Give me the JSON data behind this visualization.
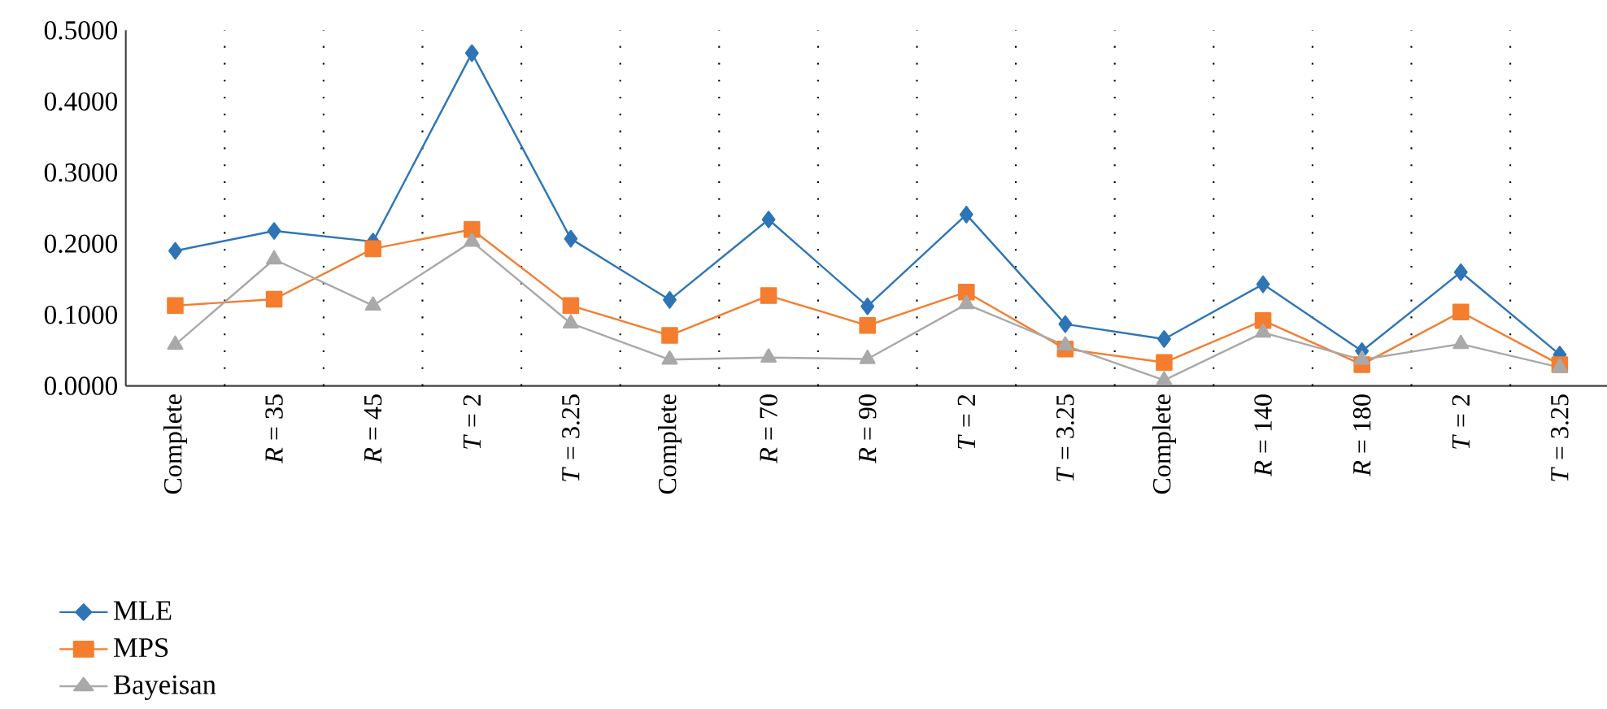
{
  "chart_data": {
    "type": "line",
    "categories": [
      "Complete",
      "*R* = 35",
      "*R* = 45",
      "*T* = 2",
      "*T* = 3.25",
      "Complete",
      "*R* = 70",
      "*R* = 90",
      "*T* = 2",
      "*T* = 3.25",
      "Complete",
      "*R* = 140",
      "*R* = 180",
      "*T* = 2",
      "*T* = 3.25"
    ],
    "series": [
      {
        "name": "MLE",
        "color": "#2e75b6",
        "marker": "diamond",
        "values": [
          0.19,
          0.218,
          0.203,
          0.468,
          0.207,
          0.121,
          0.234,
          0.112,
          0.241,
          0.087,
          0.066,
          0.143,
          0.049,
          0.16,
          0.044
        ]
      },
      {
        "name": "MPS",
        "color": "#f47d2f",
        "marker": "square",
        "values": [
          0.113,
          0.122,
          0.193,
          0.22,
          0.113,
          0.071,
          0.127,
          0.085,
          0.132,
          0.052,
          0.033,
          0.092,
          0.03,
          0.104,
          0.03
        ]
      },
      {
        "name": "Bayeisan",
        "color": "#a9a9a9",
        "marker": "triangle",
        "values": [
          0.058,
          0.178,
          0.113,
          0.203,
          0.088,
          0.037,
          0.04,
          0.038,
          0.115,
          0.057,
          0.008,
          0.075,
          0.037,
          0.059,
          0.026
        ]
      }
    ],
    "ylim": [
      0,
      0.5
    ],
    "yticks": [
      {
        "value": 0,
        "label": "0.0000"
      },
      {
        "value": 0.1,
        "label": "0.1000"
      },
      {
        "value": 0.2,
        "label": "0.2000"
      },
      {
        "value": 0.3,
        "label": "0.3000"
      },
      {
        "value": 0.4,
        "label": "0.4000"
      },
      {
        "value": 0.5,
        "label": "0.5000"
      }
    ],
    "grid": "x",
    "legend": "bottom left",
    "line_style": "solid"
  }
}
